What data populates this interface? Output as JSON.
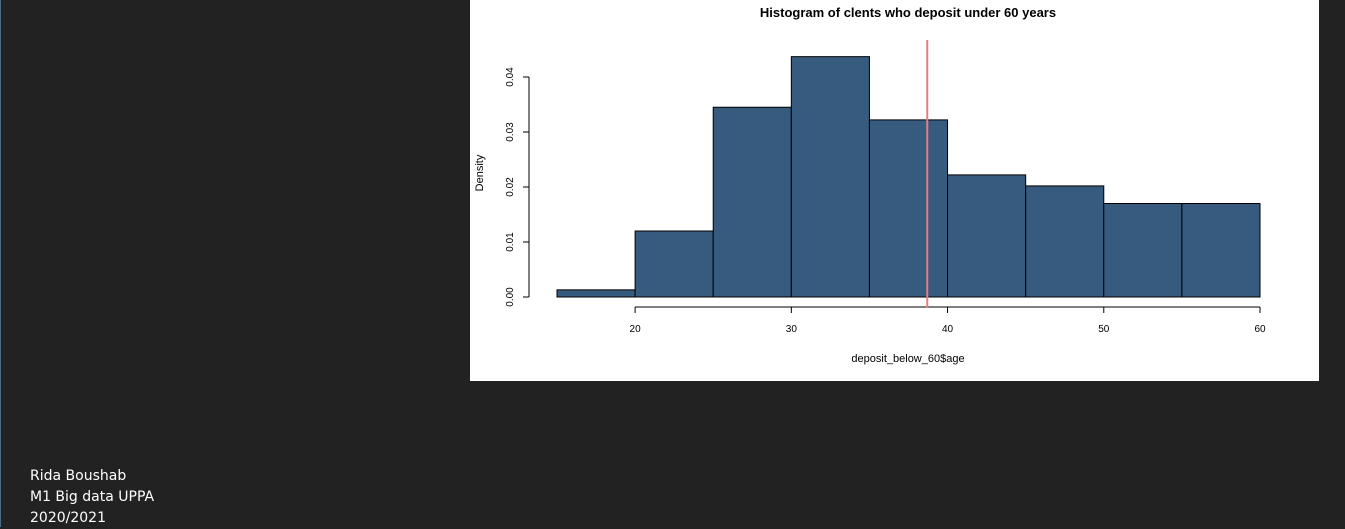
{
  "chart_data": {
    "type": "bar",
    "title": "Histogram of clents who deposit under 60 years",
    "xlabel": "deposit_below_60$age",
    "ylabel": "Density",
    "bins": [
      {
        "start": 15,
        "end": 20,
        "density": 0.0013
      },
      {
        "start": 20,
        "end": 25,
        "density": 0.012
      },
      {
        "start": 25,
        "end": 30,
        "density": 0.0345
      },
      {
        "start": 30,
        "end": 35,
        "density": 0.0437
      },
      {
        "start": 35,
        "end": 40,
        "density": 0.0322
      },
      {
        "start": 40,
        "end": 45,
        "density": 0.0222
      },
      {
        "start": 45,
        "end": 50,
        "density": 0.0202
      },
      {
        "start": 50,
        "end": 55,
        "density": 0.017
      },
      {
        "start": 55,
        "end": 60,
        "density": 0.017
      }
    ],
    "xticks": [
      20,
      30,
      40,
      50,
      60
    ],
    "xtick_labels": [
      "20",
      "30",
      "40",
      "50",
      "60"
    ],
    "yticks": [
      0,
      0.01,
      0.02,
      0.03,
      0.04
    ],
    "ytick_labels": [
      "0.00",
      "0.01",
      "0.02",
      "0.03",
      "0.04"
    ],
    "xlim": [
      15,
      60
    ],
    "ylim": [
      0,
      0.046
    ],
    "vline": {
      "x": 38.7,
      "color": "#e08080"
    },
    "bar_color": "#375a7f",
    "grid": false,
    "legend": "none"
  },
  "footer": {
    "author": "Rida Boushab",
    "program": "M1 Big data UPPA",
    "year": "2020/2021"
  }
}
